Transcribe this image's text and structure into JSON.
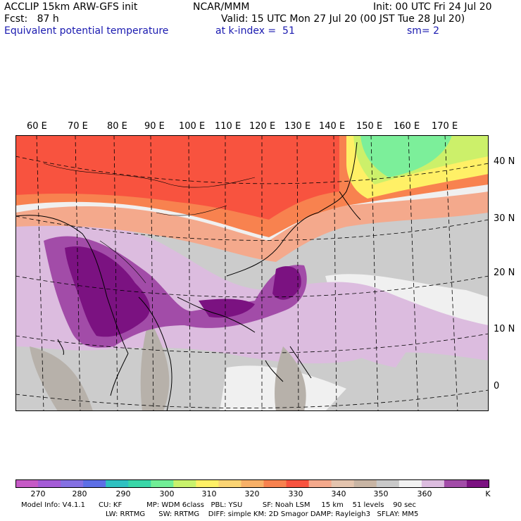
{
  "header": {
    "line1_left": "ACCLIP 15km ARW-GFS init",
    "line1_center": "NCAR/MMM",
    "line1_right": "Init: 00 UTC Fri 24 Jul 20",
    "line2_left": "Fcst:   87 h",
    "line2_right": "Valid: 15 UTC Mon 27 Jul 20 (00 JST Tue 28 Jul 20)",
    "line3_left": "Equivalent potential temperature",
    "line3_center": "at k-index =  51",
    "line3_right": "sm= 2"
  },
  "map": {
    "lon_labels": [
      "60 E",
      "70 E",
      "80 E",
      "90 E",
      "100 E",
      "110 E",
      "120 E",
      "130 E",
      "140 E",
      "150 E",
      "160 E",
      "170 E"
    ],
    "lat_labels": [
      "40 N",
      "30 N",
      "20 N",
      "10 N",
      "0"
    ],
    "colors": {
      "ocean_base": "#f0f0f0",
      "gray_light": "#cccccc",
      "gray_dark": "#b7b1aa",
      "lavender": "#dcbcdf",
      "purple_mid": "#a24ca8",
      "purple_dark": "#7b1281",
      "salmon": "#f4a98c",
      "orange_light": "#f8824f",
      "red_orange": "#f8533f",
      "yellow": "#fff066",
      "yellow_green": "#ccf06a",
      "green": "#7cef9a",
      "coast": "#000000"
    }
  },
  "colorbar": {
    "colors": [
      "#c65ac6",
      "#a45bd6",
      "#8470e2",
      "#5d6fe6",
      "#2fc1c1",
      "#39d7a8",
      "#71ee96",
      "#c8f26c",
      "#fff066",
      "#fbd474",
      "#f8b067",
      "#f8824f",
      "#f8533f",
      "#f4a98c",
      "#e4c4ae",
      "#c8b5a4",
      "#c9c9c9",
      "#f2f2f2",
      "#dcbcdf",
      "#a24ca8",
      "#7b1281"
    ],
    "labels": [
      "270",
      "280",
      "290",
      "300",
      "310",
      "320",
      "330",
      "340",
      "350",
      "360"
    ],
    "unit": "K"
  },
  "footer": {
    "line1": "Model Info: V4.1.1      CU: KF           MP: WDM 6class   PBL: YSU         SF: Noah LSM     15 km    51 levels    90 sec",
    "line2": "LW: RRTMG      SW: RRTMG    DIFF: simple KM: 2D Smagor DAMP: Rayleigh3   SFLAY: MM5"
  }
}
